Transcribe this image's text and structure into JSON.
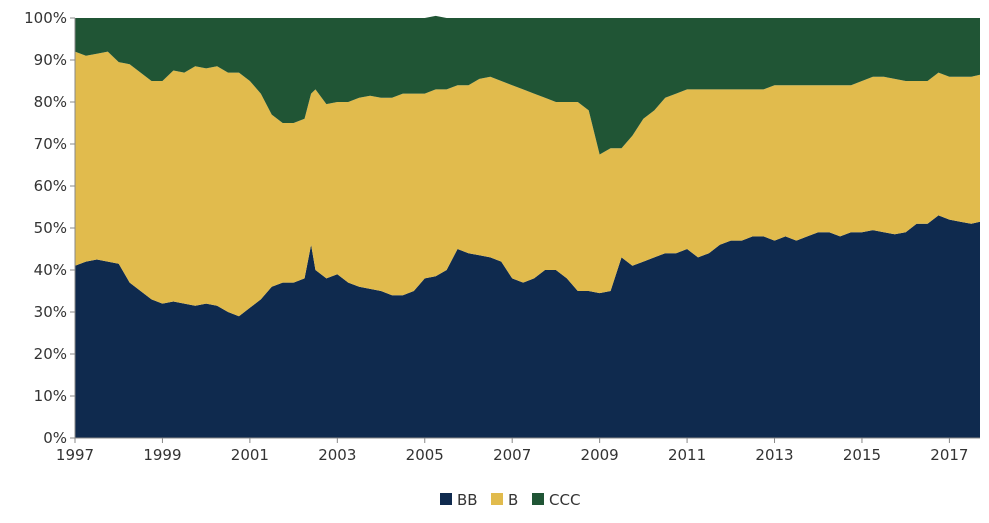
{
  "chart_data": {
    "type": "area",
    "stacked": true,
    "x": [
      1997.0,
      1997.25,
      1997.5,
      1997.75,
      1998.0,
      1998.25,
      1998.5,
      1998.75,
      1999.0,
      1999.25,
      1999.5,
      1999.75,
      2000.0,
      2000.25,
      2000.5,
      2000.75,
      2001.0,
      2001.25,
      2001.5,
      2001.75,
      2002.0,
      2002.25,
      2002.4,
      2002.5,
      2002.75,
      2003.0,
      2003.25,
      2003.5,
      2003.75,
      2004.0,
      2004.25,
      2004.5,
      2004.75,
      2005.0,
      2005.25,
      2005.5,
      2005.75,
      2006.0,
      2006.25,
      2006.5,
      2006.75,
      2007.0,
      2007.25,
      2007.5,
      2007.75,
      2008.0,
      2008.25,
      2008.5,
      2008.75,
      2009.0,
      2009.25,
      2009.5,
      2009.75,
      2010.0,
      2010.25,
      2010.5,
      2010.75,
      2011.0,
      2011.25,
      2011.5,
      2011.75,
      2012.0,
      2012.25,
      2012.5,
      2012.75,
      2013.0,
      2013.25,
      2013.5,
      2013.75,
      2014.0,
      2014.25,
      2014.5,
      2014.75,
      2015.0,
      2015.25,
      2015.5,
      2015.75,
      2016.0,
      2016.25,
      2016.5,
      2016.75,
      2017.0,
      2017.25,
      2017.5,
      2017.7
    ],
    "series": [
      {
        "name": "BB",
        "color": "#0f2a4e",
        "values": [
          41,
          42,
          42.5,
          42,
          41.5,
          37,
          35,
          33,
          32,
          32.5,
          32,
          31.5,
          32,
          31.5,
          30,
          29,
          31,
          33,
          36,
          37,
          37,
          38,
          46,
          40,
          38,
          39,
          37,
          36,
          35.5,
          35,
          34,
          34,
          35,
          38,
          38.5,
          40,
          45,
          44,
          43.5,
          43,
          42,
          38,
          37,
          38,
          40,
          40,
          38,
          35,
          35,
          34.5,
          35,
          43,
          41,
          42,
          43,
          44,
          44,
          45,
          43,
          44,
          46,
          47,
          47,
          48,
          48,
          47,
          48,
          47,
          48,
          49,
          49,
          48,
          49,
          49,
          49.5,
          49,
          48.5,
          49,
          51,
          51,
          53,
          52,
          51.5,
          51,
          51.5
        ]
      },
      {
        "name": "B",
        "color": "#e1bb4d",
        "values": [
          51,
          49,
          49,
          50,
          48,
          52,
          52,
          52,
          53,
          55,
          55,
          57,
          56,
          57,
          57,
          58,
          54,
          49,
          41,
          38,
          38,
          38,
          36,
          43,
          41.5,
          41,
          43,
          45,
          46,
          46,
          47,
          48,
          47,
          44,
          44.5,
          43,
          39,
          40,
          42,
          43,
          43,
          46,
          46,
          44,
          41,
          40,
          42,
          45,
          43,
          33,
          34,
          26,
          31,
          34,
          35,
          37,
          38,
          38,
          40,
          39,
          37,
          36,
          36,
          35,
          35,
          37,
          36,
          37,
          36,
          35,
          35,
          36,
          35,
          36,
          36.5,
          37,
          37,
          36,
          34,
          34,
          34,
          34,
          34.5,
          35,
          35
        ]
      },
      {
        "name": "CCC",
        "color": "#205535",
        "values": [
          8,
          9,
          8.5,
          8,
          10.5,
          11,
          13,
          15,
          15,
          12.5,
          13,
          11.5,
          12,
          11.5,
          13,
          13,
          15,
          18,
          23,
          25,
          25,
          24,
          18,
          17,
          20.5,
          20,
          20,
          19,
          18.5,
          19,
          19,
          18,
          18,
          18,
          17.5,
          17,
          16,
          16,
          14.5,
          14,
          15,
          16,
          17,
          18,
          19,
          20,
          20,
          20,
          22,
          32.5,
          31,
          31,
          28,
          24,
          22,
          19,
          18,
          17,
          17,
          17,
          17,
          17,
          17,
          17,
          17,
          16,
          16,
          16,
          16,
          16,
          16,
          16,
          16,
          15,
          14,
          14,
          14.5,
          15,
          15,
          15,
          13,
          14,
          14,
          14,
          13.5
        ]
      }
    ],
    "ylim": [
      0,
      100
    ],
    "xlim": [
      1997.0,
      2017.7
    ],
    "xticks": [
      1997,
      1999,
      2001,
      2003,
      2005,
      2007,
      2009,
      2011,
      2013,
      2015,
      2017
    ],
    "yticks": [
      "0%",
      "10%",
      "20%",
      "30%",
      "40%",
      "50%",
      "60%",
      "70%",
      "80%",
      "90%",
      "100%"
    ],
    "grid": false,
    "legend_position": "bottom-center"
  }
}
